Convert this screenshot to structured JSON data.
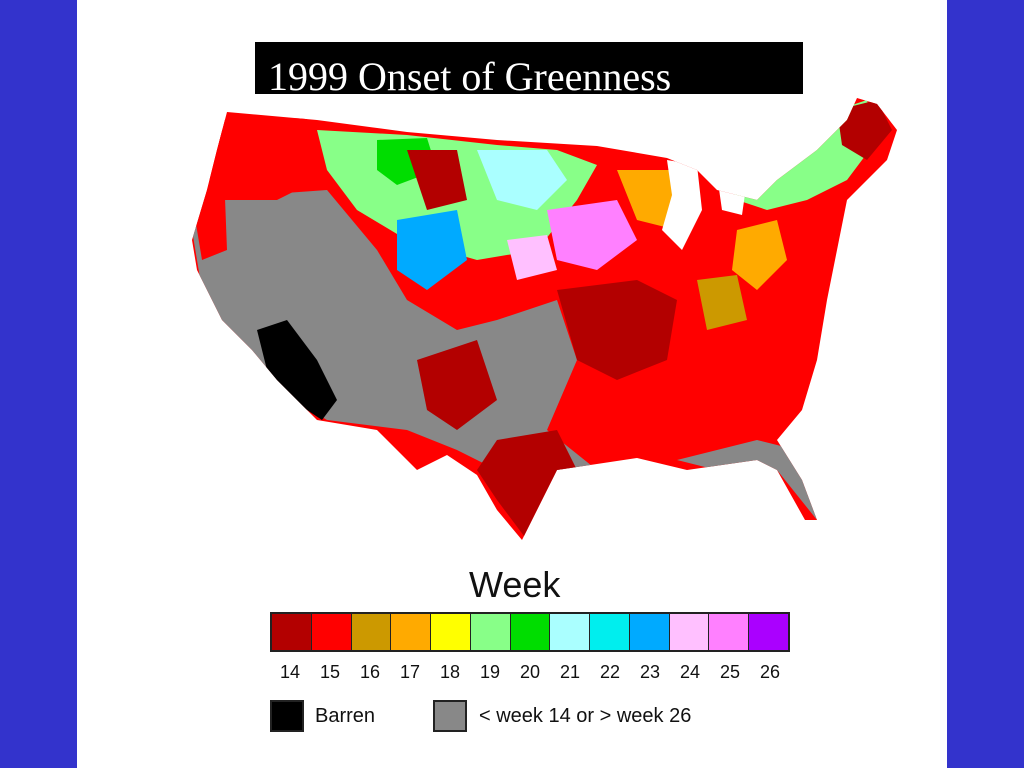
{
  "title": "1999 Onset of Greenness",
  "legend": {
    "title": "Week",
    "weeks": [
      {
        "week": "14",
        "color": "#b30000"
      },
      {
        "week": "15",
        "color": "#ff0000"
      },
      {
        "week": "16",
        "color": "#cc9900"
      },
      {
        "week": "17",
        "color": "#ffaa00"
      },
      {
        "week": "18",
        "color": "#ffff00"
      },
      {
        "week": "19",
        "color": "#88ff88"
      },
      {
        "week": "20",
        "color": "#00dd00"
      },
      {
        "week": "21",
        "color": "#aaffff"
      },
      {
        "week": "22",
        "color": "#00eeee"
      },
      {
        "week": "23",
        "color": "#00aaff"
      },
      {
        "week": "24",
        "color": "#ffc0ff"
      },
      {
        "week": "25",
        "color": "#ff80ff"
      },
      {
        "week": "26",
        "color": "#aa00ff"
      }
    ],
    "barren_label": "Barren",
    "barren_color": "#000000",
    "other_label": "< week 14 or > week 26",
    "other_color": "#888888"
  },
  "colors": {
    "background": "#3333cc",
    "slide": "#ffffff",
    "title_bg": "#000000"
  }
}
